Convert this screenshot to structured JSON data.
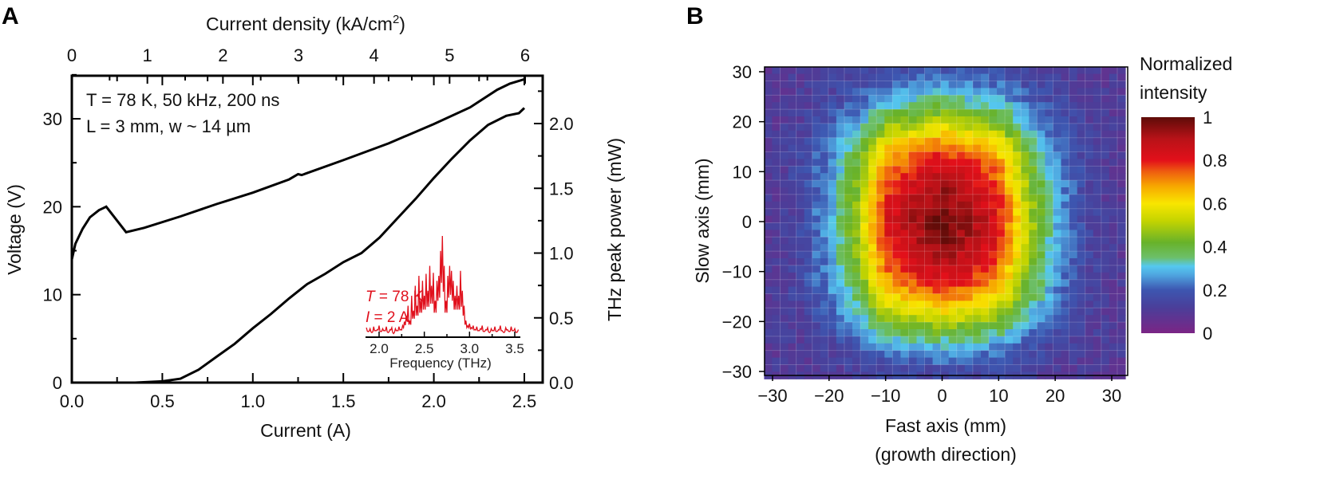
{
  "panels": {
    "a": "A",
    "b": "B"
  },
  "chart_data": [
    {
      "type": "line",
      "xlabel": "Current (A)",
      "x2label_main": "Current density (kA/cm",
      "x2label_sup": "2",
      "x2label_end": ")",
      "ylabel": "Voltage (V)",
      "y2label": "THz peak power (mW)",
      "xlim": [
        0,
        2.6
      ],
      "ylim": [
        0,
        35
      ],
      "x2lim": [
        0,
        6.2
      ],
      "y2lim": [
        0,
        2.35
      ],
      "xticks": [
        "0.0",
        "0.5",
        "1.0",
        "1.5",
        "2.0",
        "2.5"
      ],
      "x2ticks": [
        "0",
        "1",
        "2",
        "3",
        "4",
        "5",
        "6"
      ],
      "yticks": [
        "0",
        "10",
        "20",
        "30"
      ],
      "y2ticks": [
        "0.0",
        "0.5",
        "1.0",
        "1.5",
        "2.0"
      ],
      "annotation_line1": "T = 78 K, 50 kHz, 200 ns",
      "annotation_line2": "L = 3 mm, w ~ 14 µm",
      "series": [
        {
          "axis": "left",
          "color": "#000000",
          "x": [
            0,
            0.02,
            0.06,
            0.1,
            0.15,
            0.19,
            0.3,
            0.4,
            0.6,
            0.8,
            1.0,
            1.2,
            1.25,
            1.27,
            1.5,
            1.75,
            2.0,
            2.2,
            2.35,
            2.42,
            2.5
          ],
          "y": [
            14,
            15.8,
            17.5,
            18.8,
            19.6,
            20,
            17.1,
            17.6,
            18.9,
            20.3,
            21.6,
            23.1,
            23.7,
            23.6,
            25.3,
            27.2,
            29.4,
            31.3,
            33.3,
            34,
            34.5
          ]
        },
        {
          "axis": "right",
          "color": "#000000",
          "x": [
            0.35,
            0.5,
            0.6,
            0.7,
            0.8,
            0.9,
            1.0,
            1.1,
            1.2,
            1.3,
            1.4,
            1.5,
            1.6,
            1.7,
            1.8,
            1.9,
            2.0,
            2.1,
            2.2,
            2.3,
            2.4,
            2.47,
            2.5
          ],
          "y": [
            0,
            0.01,
            0.03,
            0.1,
            0.2,
            0.3,
            0.42,
            0.53,
            0.65,
            0.76,
            0.84,
            0.93,
            1.0,
            1.12,
            1.27,
            1.42,
            1.58,
            1.73,
            1.87,
            1.99,
            2.06,
            2.08,
            2.12
          ]
        }
      ],
      "inset": {
        "type": "line",
        "color": "#e0101c",
        "xlabel": "Frequency (THz)",
        "xlim": [
          1.85,
          3.55
        ],
        "xticks": [
          "2.0",
          "2.5",
          "3.0",
          "3.5"
        ],
        "label_T_var": "T",
        "label_T_rest": " = 78 K",
        "label_I_var": "I",
        "label_I_rest": " = 2 A",
        "x": [
          1.86,
          1.88,
          1.9,
          1.92,
          1.94,
          1.96,
          1.98,
          2.0,
          2.02,
          2.04,
          2.06,
          2.08,
          2.1,
          2.12,
          2.14,
          2.16,
          2.18,
          2.2,
          2.22,
          2.24,
          2.26,
          2.28,
          2.3,
          2.32,
          2.34,
          2.36,
          2.38,
          2.4,
          2.42,
          2.44,
          2.46,
          2.48,
          2.5,
          2.52,
          2.54,
          2.56,
          2.58,
          2.6,
          2.62,
          2.64,
          2.66,
          2.68,
          2.7,
          2.72,
          2.74,
          2.76,
          2.78,
          2.8,
          2.82,
          2.84,
          2.86,
          2.88,
          2.9,
          2.92,
          2.94,
          2.96,
          2.98,
          3.0,
          3.02,
          3.04,
          3.06,
          3.08,
          3.1,
          3.12,
          3.14,
          3.16,
          3.18,
          3.2,
          3.22,
          3.24,
          3.26,
          3.28,
          3.3,
          3.32,
          3.34,
          3.36,
          3.38,
          3.4,
          3.42,
          3.44,
          3.46,
          3.48,
          3.5,
          3.52,
          3.54
        ],
        "y": [
          0.08,
          0.04,
          0.07,
          0.03,
          0.09,
          0.05,
          0.06,
          0.1,
          0.04,
          0.07,
          0.05,
          0.09,
          0.03,
          0.06,
          0.08,
          0.02,
          0.07,
          0.05,
          0.09,
          0.06,
          0.1,
          0.14,
          0.2,
          0.3,
          0.15,
          0.4,
          0.25,
          0.5,
          0.3,
          0.6,
          0.35,
          0.55,
          0.4,
          0.62,
          0.45,
          0.7,
          0.5,
          0.63,
          0.35,
          0.55,
          0.6,
          0.85,
          1.0,
          0.7,
          0.35,
          0.6,
          0.7,
          0.65,
          0.55,
          0.4,
          0.5,
          0.4,
          0.65,
          0.45,
          0.3,
          0.15,
          0.1,
          0.12,
          0.08,
          0.1,
          0.06,
          0.09,
          0.05,
          0.07,
          0.1,
          0.04,
          0.06,
          0.08,
          0.03,
          0.07,
          0.05,
          0.09,
          0.04,
          0.06,
          0.1,
          0.05,
          0.03,
          0.08,
          0.06,
          0.04,
          0.09,
          0.05,
          0.07,
          0.03,
          0.06
        ]
      }
    },
    {
      "type": "heatmap",
      "xlabel": "Fast axis (mm)",
      "xlabel2": "(growth direction)",
      "ylabel": "Slow axis (mm)",
      "xlim": [
        -31.5,
        32
      ],
      "ylim": [
        -30.8,
        31
      ],
      "xticks": [
        "−30",
        "−20",
        "−10",
        "0",
        "10",
        "20",
        "30"
      ],
      "yticks": [
        "30",
        "20",
        "10",
        "0",
        "−10",
        "−20",
        "−30"
      ],
      "grid_x": [
        -30,
        -25,
        -20,
        -15,
        -10,
        -5,
        0,
        5,
        10,
        15,
        20,
        25,
        30
      ],
      "grid_y_top_to_bottom": [
        30,
        25,
        20,
        15,
        10,
        5,
        0,
        -5,
        -10,
        -15,
        -20,
        -25,
        -30
      ],
      "values": [
        [
          0.1,
          0.11,
          0.12,
          0.14,
          0.17,
          0.18,
          0.19,
          0.18,
          0.17,
          0.14,
          0.12,
          0.11,
          0.1
        ],
        [
          0.1,
          0.11,
          0.14,
          0.19,
          0.27,
          0.3,
          0.32,
          0.3,
          0.28,
          0.2,
          0.15,
          0.12,
          0.1
        ],
        [
          0.1,
          0.12,
          0.18,
          0.27,
          0.42,
          0.47,
          0.51,
          0.48,
          0.43,
          0.29,
          0.19,
          0.13,
          0.1
        ],
        [
          0.1,
          0.14,
          0.23,
          0.38,
          0.62,
          0.7,
          0.75,
          0.7,
          0.62,
          0.4,
          0.24,
          0.15,
          0.1
        ],
        [
          0.1,
          0.15,
          0.25,
          0.43,
          0.72,
          0.81,
          0.87,
          0.82,
          0.73,
          0.46,
          0.27,
          0.15,
          0.1
        ],
        [
          0.1,
          0.15,
          0.27,
          0.46,
          0.78,
          0.88,
          0.95,
          0.89,
          0.79,
          0.5,
          0.29,
          0.16,
          0.1
        ],
        [
          0.1,
          0.15,
          0.28,
          0.49,
          0.82,
          0.93,
          1.0,
          0.94,
          0.83,
          0.52,
          0.3,
          0.16,
          0.1
        ],
        [
          0.1,
          0.15,
          0.27,
          0.46,
          0.78,
          0.88,
          0.95,
          0.89,
          0.79,
          0.5,
          0.29,
          0.16,
          0.1
        ],
        [
          0.1,
          0.15,
          0.25,
          0.43,
          0.72,
          0.81,
          0.87,
          0.82,
          0.73,
          0.46,
          0.27,
          0.15,
          0.1
        ],
        [
          0.1,
          0.14,
          0.23,
          0.37,
          0.6,
          0.68,
          0.73,
          0.69,
          0.61,
          0.4,
          0.24,
          0.14,
          0.1
        ],
        [
          0.1,
          0.12,
          0.18,
          0.27,
          0.42,
          0.47,
          0.51,
          0.48,
          0.43,
          0.29,
          0.19,
          0.13,
          0.1
        ],
        [
          0.1,
          0.11,
          0.14,
          0.19,
          0.26,
          0.28,
          0.3,
          0.28,
          0.26,
          0.19,
          0.14,
          0.11,
          0.1
        ],
        [
          0.1,
          0.1,
          0.11,
          0.12,
          0.14,
          0.15,
          0.15,
          0.15,
          0.14,
          0.13,
          0.11,
          0.1,
          0.1
        ]
      ],
      "colorbar": {
        "title_line1": "Normalized",
        "title_line2": "intensity",
        "range": [
          0,
          1
        ],
        "ticks": [
          "0",
          "0.2",
          "0.4",
          "0.6",
          "0.8",
          "1"
        ],
        "colormap": [
          [
            0.0,
            "#7b2585"
          ],
          [
            0.12,
            "#4a3f9a"
          ],
          [
            0.2,
            "#3d56b0"
          ],
          [
            0.27,
            "#4fa6e0"
          ],
          [
            0.31,
            "#55c8ef"
          ],
          [
            0.35,
            "#6cbf6a"
          ],
          [
            0.42,
            "#68b22a"
          ],
          [
            0.52,
            "#c4d400"
          ],
          [
            0.6,
            "#f8e600"
          ],
          [
            0.68,
            "#f7a800"
          ],
          [
            0.75,
            "#ee5a10"
          ],
          [
            0.8,
            "#e3101a"
          ],
          [
            0.9,
            "#b81218"
          ],
          [
            1.0,
            "#5e0c08"
          ]
        ]
      }
    }
  ]
}
